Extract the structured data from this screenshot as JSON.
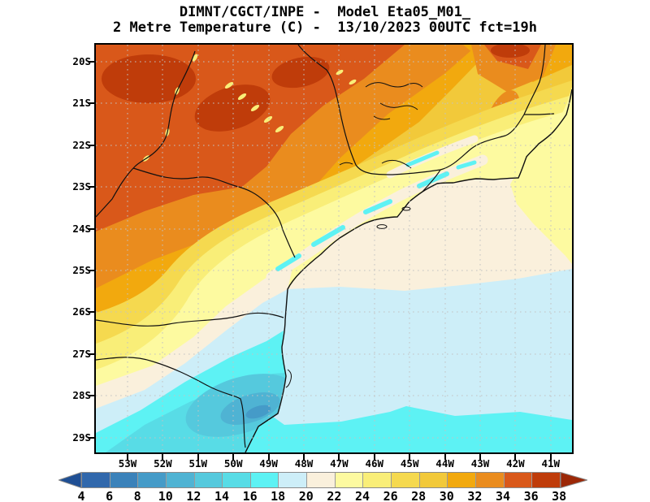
{
  "title": {
    "line1": "DIMNT/CGCT/INPE -  Model Eta05_M01_",
    "line2": "2 Metre Temperature (C) -  13/10/2023 00UTC fct=19h"
  },
  "map": {
    "lat_labels": [
      "20S",
      "21S",
      "22S",
      "23S",
      "24S",
      "25S",
      "26S",
      "27S",
      "28S",
      "29S"
    ],
    "lon_labels": [
      "53W",
      "52W",
      "51W",
      "50W",
      "49W",
      "48W",
      "47W",
      "46W",
      "45W",
      "44W",
      "43W",
      "42W",
      "41W"
    ]
  },
  "colorbar": {
    "values": [
      "4",
      "6",
      "8",
      "10",
      "12",
      "14",
      "16",
      "18",
      "20",
      "22",
      "24",
      "26",
      "28",
      "30",
      "32",
      "34",
      "36",
      "38"
    ],
    "colors": [
      "#1f4f94",
      "#3168ac",
      "#3b82ba",
      "#459bc8",
      "#4fb3d3",
      "#55c9dd",
      "#58dce6",
      "#5df2f4",
      "#cdeef8",
      "#faf0dc",
      "#fdfaa0",
      "#f9ee78",
      "#f5d94f",
      "#f2c93a",
      "#f2a90e",
      "#ea8c1e",
      "#d9581a",
      "#bf3c0a",
      "#9c2807"
    ],
    "units": "C"
  },
  "chart_data": {
    "type": "filled-contour-map",
    "variable": "2 Metre Temperature (C)",
    "institution": "DIMNT/CGCT/INPE",
    "model": "Eta05_M01_",
    "valid": "13/10/2023 00UTC fct=19h",
    "lat_range": [
      "20S",
      "29S"
    ],
    "lon_range": [
      "53W",
      "41W"
    ],
    "contour_levels_c": [
      4,
      6,
      8,
      10,
      12,
      14,
      16,
      18,
      20,
      22,
      24,
      26,
      28,
      30,
      32,
      34,
      36,
      38
    ],
    "legend_position": "bottom",
    "grid": "dotted 1-degree graticule",
    "regions": [
      {
        "area": "northwest corner (W Sao Paulo / Mato Grosso do Sul)",
        "temp_c": "34-38"
      },
      {
        "area": "north-central hot patch (S Minas Gerais)",
        "temp_c": "34-38"
      },
      {
        "area": "central Sao Paulo plateau",
        "temp_c": "28-34"
      },
      {
        "area": "east Sao Paulo / Rio de Janeiro interior",
        "temp_c": "24-28"
      },
      {
        "area": "coastal mountain strip (Serra do Mar / Mantiqueira)",
        "temp_c": "16-22"
      },
      {
        "area": "west Parana warm tongue",
        "temp_c": "26-30"
      },
      {
        "area": "Santa Catarina highlands cold core",
        "temp_c": "8-16"
      },
      {
        "area": "Atlantic ocean northeast sector",
        "temp_c": "20-24"
      },
      {
        "area": "Atlantic ocean central band",
        "temp_c": "18-20"
      },
      {
        "area": "Atlantic ocean southern band",
        "temp_c": "16-18"
      }
    ]
  }
}
